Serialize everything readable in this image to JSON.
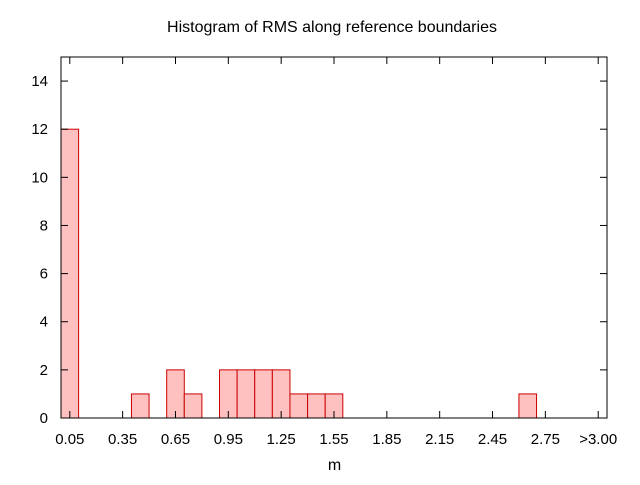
{
  "chart_data": {
    "type": "bar",
    "title": "Histogram of RMS along reference boundaries",
    "xlabel": "m",
    "ylabel": "",
    "bin_width": 0.1,
    "x_range": [
      0.0,
      3.1
    ],
    "ylim": [
      0,
      15
    ],
    "y_ticks": [
      0,
      2,
      4,
      6,
      8,
      10,
      12,
      14
    ],
    "x_ticks": [
      {
        "value": 0.05,
        "label": "0.05"
      },
      {
        "value": 0.35,
        "label": "0.35"
      },
      {
        "value": 0.65,
        "label": "0.65"
      },
      {
        "value": 0.95,
        "label": "0.95"
      },
      {
        "value": 1.25,
        "label": "1.25"
      },
      {
        "value": 1.55,
        "label": "1.55"
      },
      {
        "value": 1.85,
        "label": "1.85"
      },
      {
        "value": 2.15,
        "label": "2.15"
      },
      {
        "value": 2.45,
        "label": "2.45"
      },
      {
        "value": 2.75,
        "label": "2.75"
      },
      {
        "value": 3.05,
        "label": ">3.00"
      }
    ],
    "bars": [
      {
        "x": 0.05,
        "value": 12
      },
      {
        "x": 0.45,
        "value": 1
      },
      {
        "x": 0.65,
        "value": 2
      },
      {
        "x": 0.75,
        "value": 1
      },
      {
        "x": 0.95,
        "value": 2
      },
      {
        "x": 1.05,
        "value": 2
      },
      {
        "x": 1.15,
        "value": 2
      },
      {
        "x": 1.25,
        "value": 2
      },
      {
        "x": 1.35,
        "value": 1
      },
      {
        "x": 1.45,
        "value": 1
      },
      {
        "x": 1.55,
        "value": 1
      },
      {
        "x": 2.65,
        "value": 1
      }
    ],
    "grid": false,
    "legend": "none",
    "colors": {
      "bar_fill": "#ffc0c0",
      "bar_stroke": "#cc0000",
      "axis": "#000000"
    }
  }
}
